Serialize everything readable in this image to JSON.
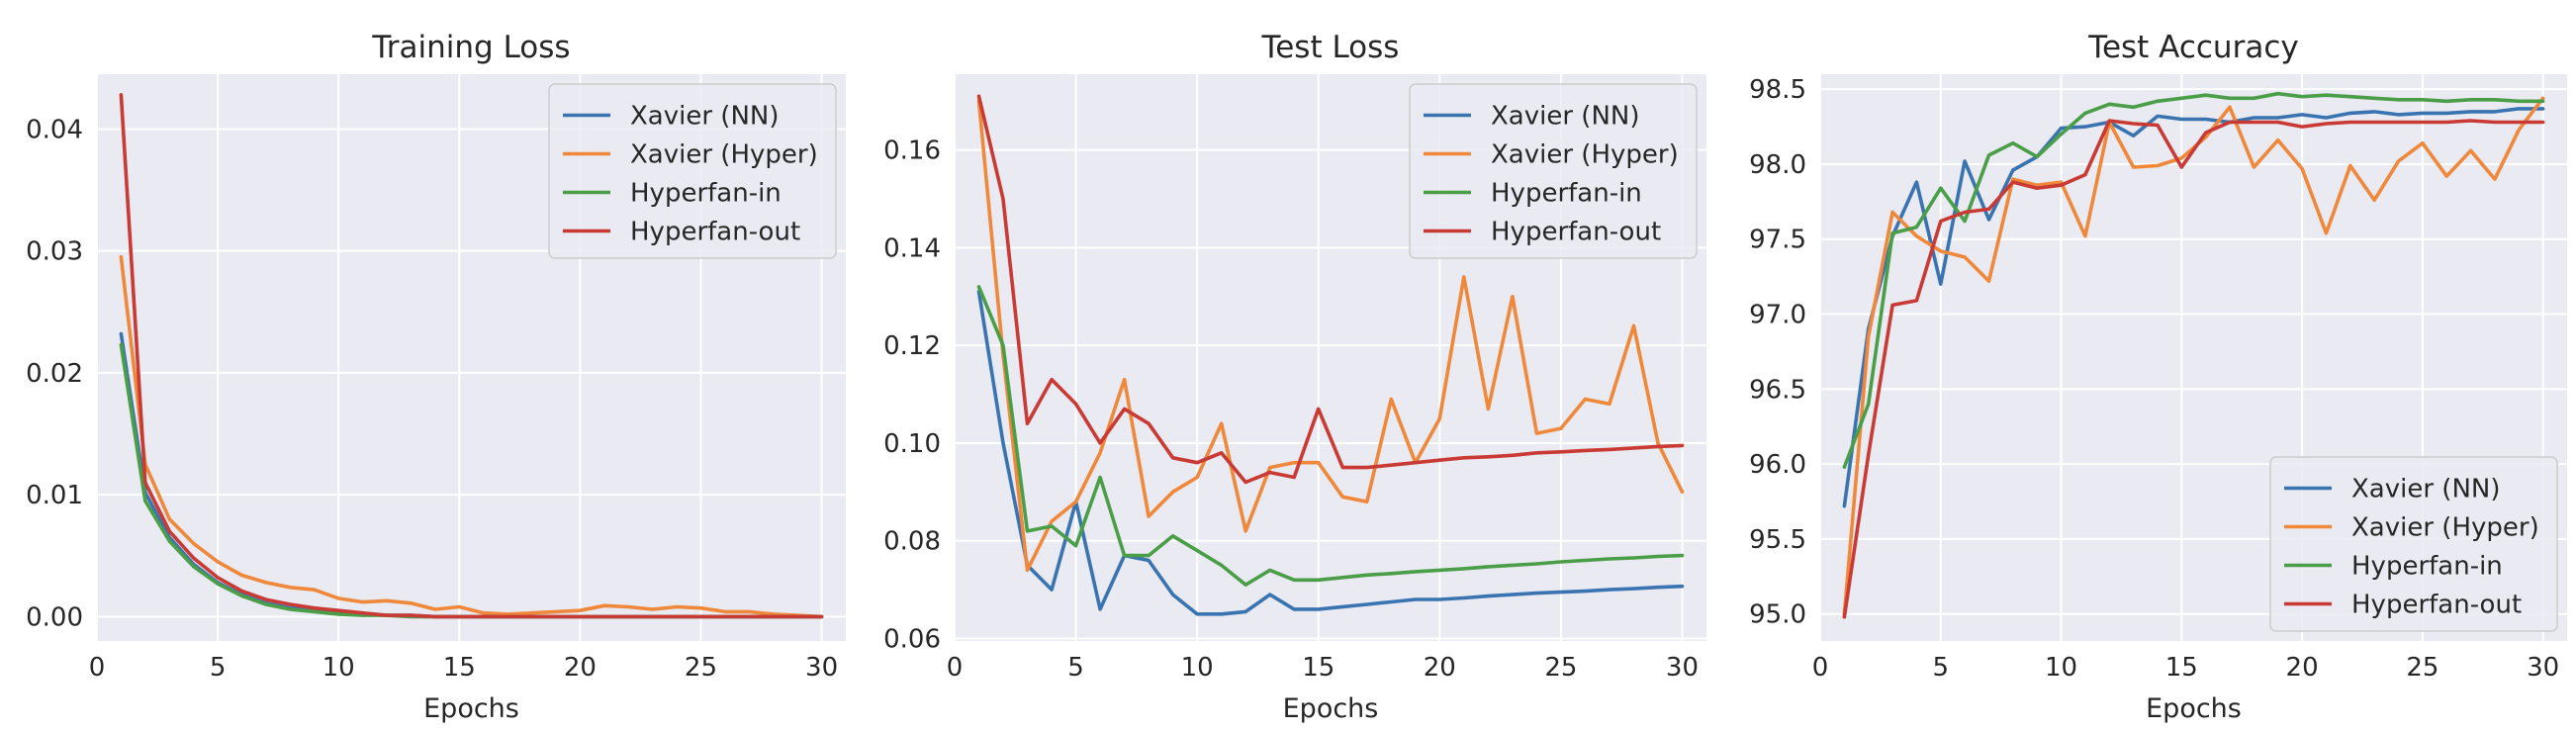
{
  "colors": {
    "Xavier (NN)": "#3a74b0",
    "Xavier (Hyper)": "#f0883b",
    "Hyperfan-in": "#4b9e48",
    "Hyperfan-out": "#c93a35",
    "plot_background": "#eaeaf2",
    "grid": "#ffffff"
  },
  "chart_data": [
    {
      "type": "line",
      "title": "Training Loss",
      "xlabel": "Epochs",
      "ylabel": "",
      "xlim": [
        0,
        31
      ],
      "ylim": [
        -0.002,
        0.0445
      ],
      "xticks": [
        0,
        5,
        10,
        15,
        20,
        25,
        30
      ],
      "yticks": [
        0.0,
        0.01,
        0.02,
        0.03,
        0.04
      ],
      "ytick_labels": [
        "0.00",
        "0.01",
        "0.02",
        "0.03",
        "0.04"
      ],
      "grid": true,
      "legend": "top-right",
      "x": [
        1,
        2,
        3,
        4,
        5,
        6,
        7,
        8,
        9,
        10,
        11,
        12,
        13,
        14,
        15,
        16,
        17,
        18,
        19,
        20,
        21,
        22,
        23,
        24,
        25,
        26,
        27,
        28,
        29,
        30
      ],
      "series": [
        {
          "name": "Xavier (NN)",
          "values": [
            0.0232,
            0.0102,
            0.0065,
            0.0043,
            0.0028,
            0.0018,
            0.0011,
            0.0007,
            0.0005,
            0.0003,
            0.0002,
            0.0001,
            0.0001,
            0.0,
            0.0,
            0.0,
            0.0,
            0.0,
            0.0,
            0.0,
            0.0,
            0.0,
            0.0,
            0.0,
            0.0,
            0.0,
            0.0,
            0.0,
            0.0,
            0.0
          ]
        },
        {
          "name": "Xavier (Hyper)",
          "values": [
            0.0295,
            0.0125,
            0.008,
            0.006,
            0.0045,
            0.0034,
            0.0028,
            0.0024,
            0.0022,
            0.0015,
            0.0012,
            0.0013,
            0.0011,
            0.0006,
            0.0008,
            0.0003,
            0.0002,
            0.0003,
            0.0004,
            0.0005,
            0.0009,
            0.0008,
            0.0006,
            0.0008,
            0.0007,
            0.0004,
            0.0004,
            0.0002,
            0.0001,
            0.0
          ]
        },
        {
          "name": "Hyperfan-in",
          "values": [
            0.0223,
            0.0095,
            0.0062,
            0.0041,
            0.0027,
            0.0017,
            0.001,
            0.0006,
            0.0004,
            0.0002,
            0.0001,
            0.0001,
            0.0,
            0.0,
            0.0,
            0.0,
            0.0,
            0.0,
            0.0,
            0.0,
            0.0,
            0.0,
            0.0,
            0.0,
            0.0,
            0.0,
            0.0,
            0.0,
            0.0,
            0.0
          ]
        },
        {
          "name": "Hyperfan-out",
          "values": [
            0.0428,
            0.011,
            0.007,
            0.0048,
            0.0032,
            0.0021,
            0.0014,
            0.001,
            0.0007,
            0.0005,
            0.0003,
            0.0001,
            0.0001,
            0.0,
            0.0,
            0.0,
            0.0,
            0.0,
            0.0,
            0.0,
            0.0,
            0.0,
            0.0,
            0.0,
            0.0,
            0.0,
            0.0,
            0.0,
            0.0,
            0.0
          ]
        }
      ]
    },
    {
      "type": "line",
      "title": "Test Loss",
      "xlabel": "Epochs",
      "ylabel": "",
      "xlim": [
        0,
        31
      ],
      "ylim": [
        0.0595,
        0.1755
      ],
      "xticks": [
        0,
        5,
        10,
        15,
        20,
        25,
        30
      ],
      "yticks": [
        0.06,
        0.08,
        0.1,
        0.12,
        0.14,
        0.16
      ],
      "ytick_labels": [
        "0.06",
        "0.08",
        "0.10",
        "0.12",
        "0.14",
        "0.16"
      ],
      "grid": true,
      "legend": "top-right",
      "x": [
        1,
        2,
        3,
        4,
        5,
        6,
        7,
        8,
        9,
        10,
        11,
        12,
        13,
        14,
        15,
        16,
        17,
        18,
        19,
        20,
        21,
        22,
        23,
        24,
        25,
        26,
        27,
        28,
        29,
        30
      ],
      "series": [
        {
          "name": "Xavier (NN)",
          "values": [
            0.131,
            0.1,
            0.075,
            0.07,
            0.088,
            0.066,
            0.077,
            0.076,
            0.069,
            0.065,
            0.065,
            0.0655,
            0.069,
            0.066,
            0.066,
            0.0665,
            0.067,
            0.0675,
            0.068,
            0.068,
            0.0683,
            0.0687,
            0.069,
            0.0693,
            0.0695,
            0.0697,
            0.07,
            0.0702,
            0.0705,
            0.0707
          ]
        },
        {
          "name": "Xavier (Hyper)",
          "values": [
            0.17,
            0.118,
            0.074,
            0.084,
            0.088,
            0.098,
            0.113,
            0.085,
            0.09,
            0.093,
            0.104,
            0.082,
            0.095,
            0.096,
            0.096,
            0.089,
            0.088,
            0.109,
            0.096,
            0.105,
            0.134,
            0.107,
            0.13,
            0.102,
            0.103,
            0.109,
            0.108,
            0.124,
            0.1,
            0.09
          ]
        },
        {
          "name": "Hyperfan-in",
          "values": [
            0.132,
            0.12,
            0.082,
            0.083,
            0.079,
            0.093,
            0.077,
            0.077,
            0.081,
            0.078,
            0.075,
            0.071,
            0.074,
            0.072,
            0.072,
            0.0725,
            0.073,
            0.0733,
            0.0737,
            0.074,
            0.0743,
            0.0747,
            0.075,
            0.0753,
            0.0757,
            0.076,
            0.0763,
            0.0765,
            0.0768,
            0.077
          ]
        },
        {
          "name": "Hyperfan-out",
          "values": [
            0.171,
            0.15,
            0.104,
            0.113,
            0.108,
            0.1,
            0.107,
            0.104,
            0.097,
            0.096,
            0.098,
            0.092,
            0.094,
            0.093,
            0.107,
            0.095,
            0.095,
            0.0955,
            0.096,
            0.0965,
            0.097,
            0.0972,
            0.0975,
            0.098,
            0.0982,
            0.0985,
            0.0987,
            0.099,
            0.0993,
            0.0995
          ]
        }
      ]
    },
    {
      "type": "line",
      "title": "Test Accuracy",
      "xlabel": "Epochs",
      "ylabel": "",
      "xlim": [
        0,
        31
      ],
      "ylim": [
        94.82,
        98.6
      ],
      "xticks": [
        0,
        5,
        10,
        15,
        20,
        25,
        30
      ],
      "yticks": [
        95.0,
        95.5,
        96.0,
        96.5,
        97.0,
        97.5,
        98.0,
        98.5
      ],
      "ytick_labels": [
        "95.0",
        "95.5",
        "96.0",
        "96.5",
        "97.0",
        "97.5",
        "98.0",
        "98.5"
      ],
      "grid": true,
      "legend": "bottom-right",
      "x": [
        1,
        2,
        3,
        4,
        5,
        6,
        7,
        8,
        9,
        10,
        11,
        12,
        13,
        14,
        15,
        16,
        17,
        18,
        19,
        20,
        21,
        22,
        23,
        24,
        25,
        26,
        27,
        28,
        29,
        30
      ],
      "series": [
        {
          "name": "Xavier (NN)",
          "values": [
            95.72,
            96.9,
            97.52,
            97.88,
            97.2,
            98.02,
            97.63,
            97.96,
            98.05,
            98.24,
            98.25,
            98.28,
            98.19,
            98.32,
            98.3,
            98.3,
            98.28,
            98.31,
            98.31,
            98.33,
            98.31,
            98.34,
            98.35,
            98.33,
            98.34,
            98.34,
            98.35,
            98.35,
            98.37,
            98.37
          ]
        },
        {
          "name": "Xavier (Hyper)",
          "values": [
            95.0,
            96.85,
            97.68,
            97.52,
            97.42,
            97.38,
            97.22,
            97.9,
            97.86,
            97.88,
            97.52,
            98.28,
            97.98,
            97.99,
            98.04,
            98.18,
            98.38,
            97.98,
            98.16,
            97.97,
            97.54,
            97.99,
            97.76,
            98.02,
            98.14,
            97.92,
            98.09,
            97.9,
            98.23,
            98.44
          ]
        },
        {
          "name": "Hyperfan-in",
          "values": [
            95.98,
            96.4,
            97.54,
            97.58,
            97.84,
            97.62,
            98.06,
            98.14,
            98.05,
            98.2,
            98.34,
            98.4,
            98.38,
            98.42,
            98.44,
            98.46,
            98.44,
            98.44,
            98.47,
            98.45,
            98.46,
            98.45,
            98.44,
            98.43,
            98.43,
            98.42,
            98.43,
            98.43,
            98.42,
            98.42
          ]
        },
        {
          "name": "Hyperfan-out",
          "values": [
            94.98,
            96.06,
            97.06,
            97.09,
            97.62,
            97.68,
            97.7,
            97.88,
            97.84,
            97.86,
            97.93,
            98.29,
            98.27,
            98.26,
            97.98,
            98.21,
            98.28,
            98.28,
            98.28,
            98.25,
            98.27,
            98.28,
            98.28,
            98.28,
            98.28,
            98.28,
            98.29,
            98.28,
            98.28,
            98.28
          ]
        }
      ]
    }
  ]
}
